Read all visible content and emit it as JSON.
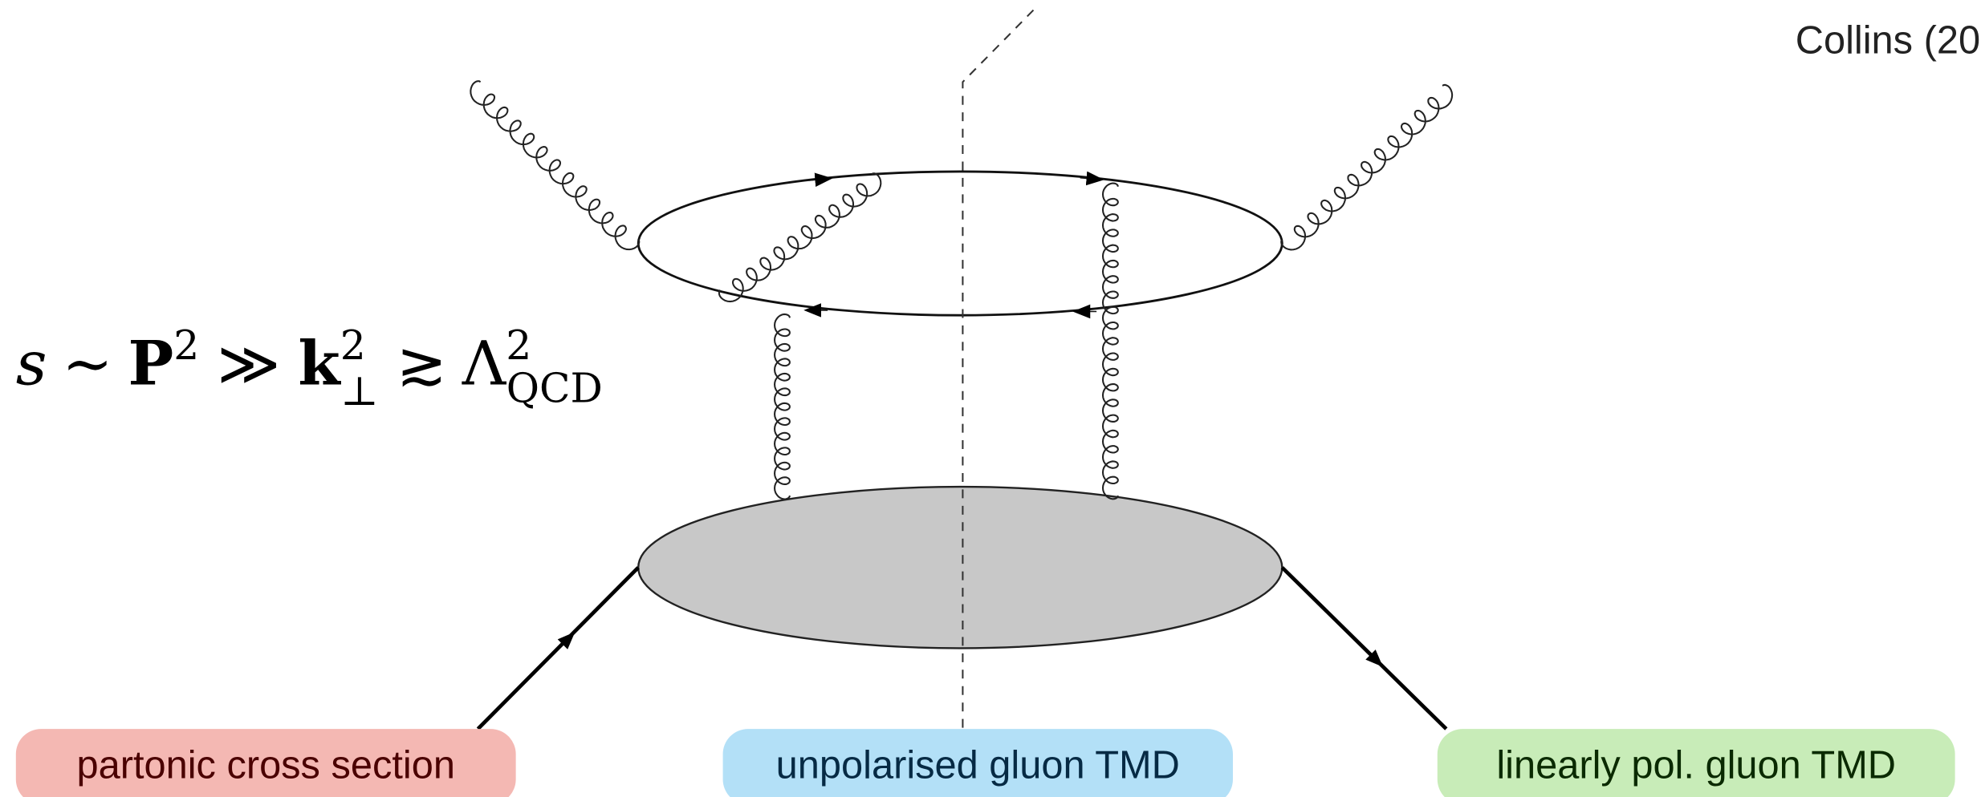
{
  "citation": "Collins (20",
  "formula": {
    "s": "s",
    "sim": "∼",
    "P": "P",
    "P_exp": "2",
    "gg": "≫",
    "k": "k",
    "k_exp": "2",
    "k_sub": "⊥",
    "gtrsim": "≳",
    "Lambda": "Λ",
    "Lambda_exp": "2",
    "Lambda_sub": "QCD"
  },
  "labels": [
    "partonic cross section",
    "unpolarised gluon TMD",
    "linearly pol. gluon TMD"
  ]
}
